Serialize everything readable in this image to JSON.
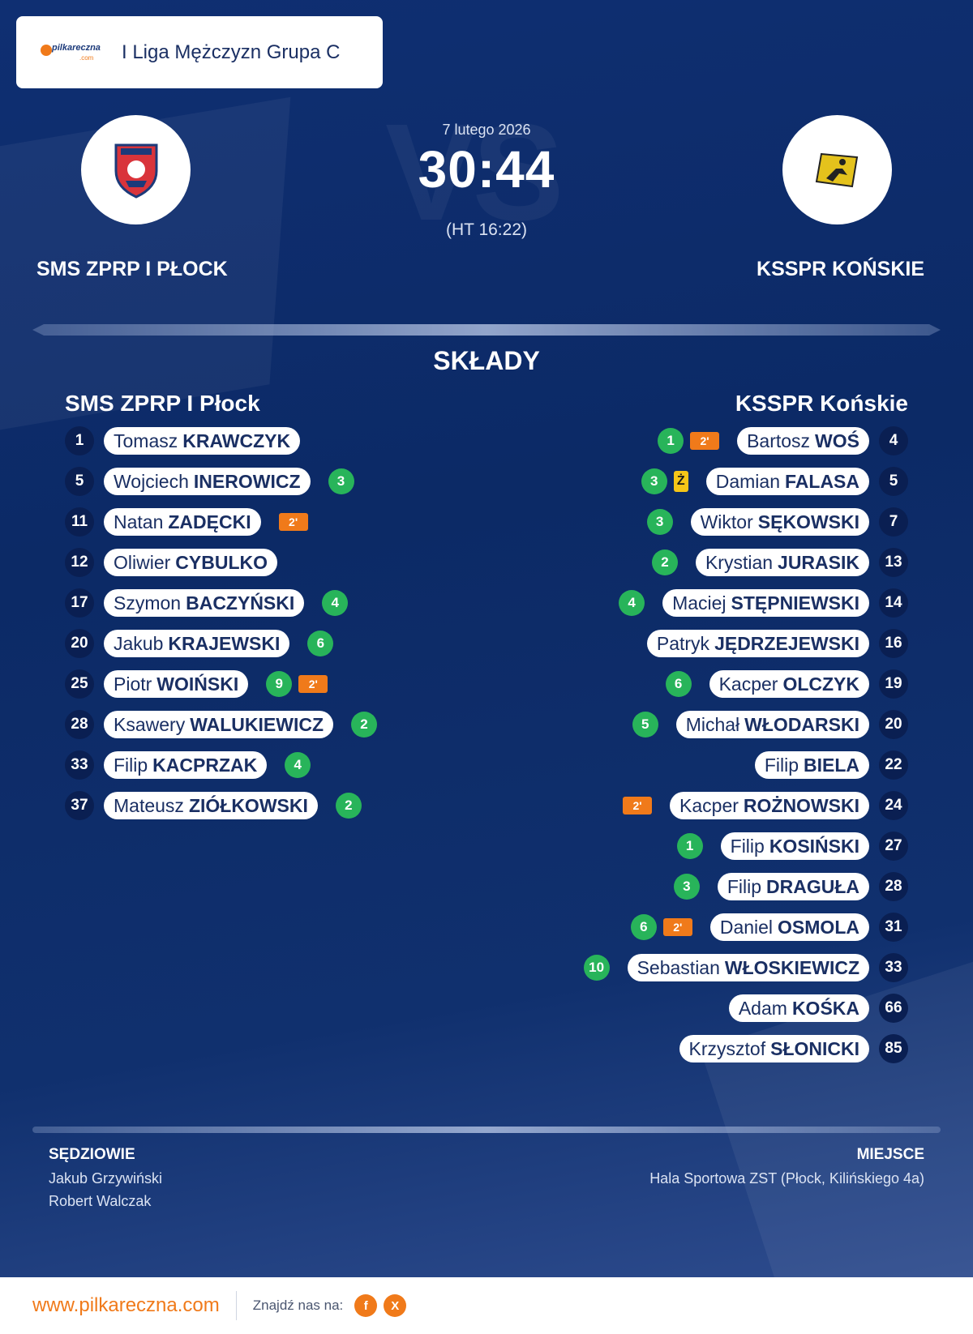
{
  "header": {
    "logo_text": "pilkareczna",
    "logo_sub": ".com",
    "league": "I Liga Mężczyzn Grupa C"
  },
  "match": {
    "date": "7 lutego 2026",
    "score": "30:44",
    "halftime": "(HT 16:22)"
  },
  "home": {
    "name_upper": "SMS ZPRP I PŁOCK",
    "name": "SMS ZPRP I Płock",
    "logo_icon": "sms-zprp-crest-icon",
    "players": [
      {
        "number": "1",
        "first": "Tomasz",
        "last": "KRAWCZYK",
        "goals": "",
        "susp": ""
      },
      {
        "number": "5",
        "first": "Wojciech",
        "last": "INEROWICZ",
        "goals": "3",
        "susp": ""
      },
      {
        "number": "11",
        "first": "Natan",
        "last": "ZADĘCKI",
        "goals": "",
        "susp": "2'"
      },
      {
        "number": "12",
        "first": "Oliwier",
        "last": "CYBULKO",
        "goals": "",
        "susp": ""
      },
      {
        "number": "17",
        "first": "Szymon",
        "last": "BACZYŃSKI",
        "goals": "4",
        "susp": ""
      },
      {
        "number": "20",
        "first": "Jakub",
        "last": "KRAJEWSKI",
        "goals": "6",
        "susp": ""
      },
      {
        "number": "25",
        "first": "Piotr",
        "last": "WOIŃSKI",
        "goals": "9",
        "susp": "2'"
      },
      {
        "number": "28",
        "first": "Ksawery",
        "last": "WALUKIEWICZ",
        "goals": "2",
        "susp": ""
      },
      {
        "number": "33",
        "first": "Filip",
        "last": "KACPRZAK",
        "goals": "4",
        "susp": ""
      },
      {
        "number": "37",
        "first": "Mateusz",
        "last": "ZIÓŁKOWSKI",
        "goals": "2",
        "susp": ""
      }
    ]
  },
  "away": {
    "name_upper": "KSSPR KOŃSKIE",
    "name": "KSSPR Końskie",
    "logo_icon": "ksspr-crest-icon",
    "players": [
      {
        "number": "4",
        "first": "Bartosz",
        "last": "WOŚ",
        "goals": "1",
        "susp": "2'",
        "yellow": ""
      },
      {
        "number": "5",
        "first": "Damian",
        "last": "FALASA",
        "goals": "3",
        "susp": "",
        "yellow": "Ż"
      },
      {
        "number": "7",
        "first": "Wiktor",
        "last": "SĘKOWSKI",
        "goals": "3",
        "susp": "",
        "yellow": ""
      },
      {
        "number": "13",
        "first": "Krystian",
        "last": "JURASIK",
        "goals": "2",
        "susp": "",
        "yellow": ""
      },
      {
        "number": "14",
        "first": "Maciej",
        "last": "STĘPNIEWSKI",
        "goals": "4",
        "susp": "",
        "yellow": ""
      },
      {
        "number": "16",
        "first": "Patryk",
        "last": "JĘDRZEJEWSKI",
        "goals": "",
        "susp": "",
        "yellow": ""
      },
      {
        "number": "19",
        "first": "Kacper",
        "last": "OLCZYK",
        "goals": "6",
        "susp": "",
        "yellow": ""
      },
      {
        "number": "20",
        "first": "Michał",
        "last": "WŁODARSKI",
        "goals": "5",
        "susp": "",
        "yellow": ""
      },
      {
        "number": "22",
        "first": "Filip",
        "last": "BIELA",
        "goals": "",
        "susp": "",
        "yellow": ""
      },
      {
        "number": "24",
        "first": "Kacper",
        "last": "ROŻNOWSKI",
        "goals": "",
        "susp": "2'",
        "yellow": ""
      },
      {
        "number": "27",
        "first": "Filip",
        "last": "KOSIŃSKI",
        "goals": "1",
        "susp": "",
        "yellow": ""
      },
      {
        "number": "28",
        "first": "Filip",
        "last": "DRAGUŁA",
        "goals": "3",
        "susp": "",
        "yellow": ""
      },
      {
        "number": "31",
        "first": "Daniel",
        "last": "OSMOLA",
        "goals": "6",
        "susp": "2'",
        "yellow": ""
      },
      {
        "number": "33",
        "first": "Sebastian",
        "last": "WŁOSKIEWICZ",
        "goals": "10",
        "susp": "",
        "yellow": ""
      },
      {
        "number": "66",
        "first": "Adam",
        "last": "KOŚKA",
        "goals": "",
        "susp": "",
        "yellow": ""
      },
      {
        "number": "85",
        "first": "Krzysztof",
        "last": "SŁONICKI",
        "goals": "",
        "susp": "",
        "yellow": ""
      }
    ]
  },
  "section_title": "SKŁADY",
  "officials": {
    "title": "SĘDZIOWIE",
    "names": [
      "Jakub Grzywiński",
      "Robert Walczak"
    ]
  },
  "venue": {
    "title": "MIEJSCE",
    "name": "Hala Sportowa ZST (Płock, Kilińskiego 4a)"
  },
  "footer": {
    "site": "www.pilkareczna.com",
    "find_us": "Znajdź nas na:",
    "social": [
      {
        "icon": "facebook-icon",
        "glyph": "f"
      },
      {
        "icon": "x-icon",
        "glyph": "X"
      }
    ]
  },
  "colors": {
    "background": "#0e2a66",
    "goal_badge": "#28b45a",
    "suspension_badge": "#f07a1a",
    "yellow_card": "#f5c518",
    "accent": "#f07a1a"
  }
}
